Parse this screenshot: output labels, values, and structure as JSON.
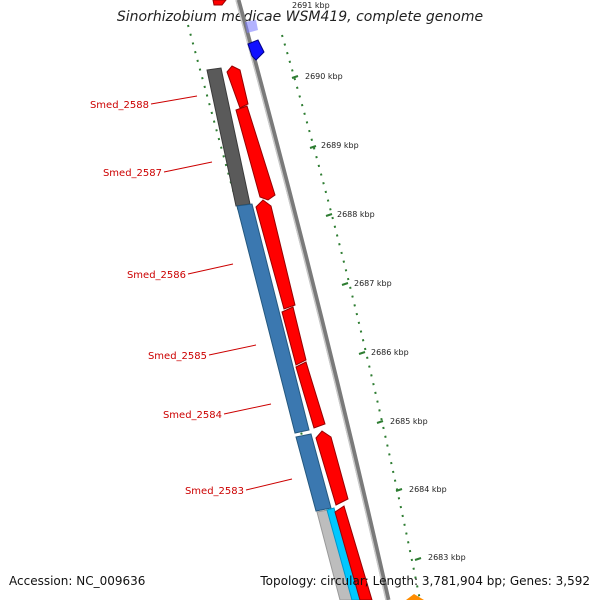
{
  "title": "Sinorhizobium medicae WSM419, complete genome",
  "footer": {
    "accession": "Accession: NC_009636",
    "topology": "Topology: circular; Length: 3,781,904 bp; Genes: 3,592"
  },
  "ticks": [
    "2691 kbp",
    "2690 kbp",
    "2689 kbp",
    "2688 kbp",
    "2687 kbp",
    "2686 kbp",
    "2685 kbp",
    "2684 kbp",
    "2683 kbp"
  ],
  "gene_labels": [
    "Smed_2588",
    "Smed_2587",
    "Smed_2586",
    "Smed_2585",
    "Smed_2584",
    "Smed_2583"
  ],
  "colors": {
    "forward_cds": "#ff0000",
    "reverse_cds": "#3b78b0",
    "reverse_cds_dark": "#5a5a5a",
    "backbone": "#888888",
    "tick": "#2e7d32",
    "label": "#cc0000",
    "blue_feature": "#1010ff",
    "cyan_feature": "#00c8ff",
    "orange_feature": "#ff8c00"
  }
}
